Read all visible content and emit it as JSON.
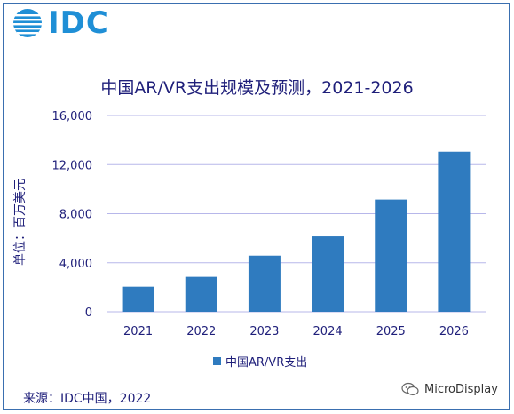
{
  "logo": {
    "text": "IDC"
  },
  "chart_data": {
    "type": "bar",
    "title": "中国AR/VR支出规模及预测，2021-2026",
    "ylabel": "单位：百万美元",
    "xlabel": "",
    "categories": [
      "2021",
      "2022",
      "2023",
      "2024",
      "2025",
      "2026"
    ],
    "series": [
      {
        "name": "中国AR/VR支出",
        "values": [
          2050,
          2850,
          4580,
          6150,
          9150,
          13050
        ]
      }
    ],
    "ylim": [
      0,
      16000
    ],
    "yticks": [
      0,
      4000,
      8000,
      12000,
      16000
    ],
    "ytick_labels": [
      "0",
      "4,000",
      "8,000",
      "12,000",
      "16,000"
    ],
    "grid": true,
    "legend": "bottom",
    "bar_color": "#2f7bbf",
    "grid_color": "#b7b7ea"
  },
  "source": "来源：IDC中国，2022",
  "watermark": "MicroDisplay"
}
